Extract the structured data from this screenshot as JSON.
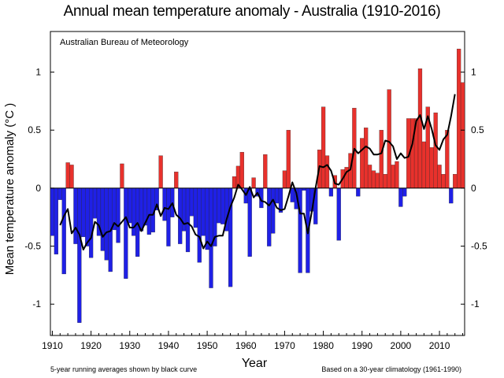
{
  "chart_data": {
    "type": "bar",
    "title": "Annual mean temperature anomaly - Australia (1910-2016)",
    "source_label": "Australian Bureau of Meteorology",
    "xlabel": "Year",
    "ylabel": "Mean temperature anomaly (°C )",
    "note_left": "5-year running averages shown by black curve",
    "note_right": "Based on a 30-year climatology (1961-1990)",
    "xlim": [
      1909.5,
      2016.5
    ],
    "ylim": [
      -1.27,
      1.35
    ],
    "x_ticks": [
      1910,
      1920,
      1930,
      1940,
      1950,
      1960,
      1970,
      1980,
      1990,
      2000,
      2010
    ],
    "y_ticks": [
      -1,
      -0.5,
      0,
      0.5,
      1
    ],
    "y_tick_labels": [
      "-1",
      "-0.5",
      "0",
      "0.5",
      "1"
    ],
    "grid": false,
    "colors": {
      "positive": "#e8312c",
      "negative": "#1f20e6",
      "curve": "#000000",
      "edge": "#222222"
    },
    "years": [
      1910,
      1911,
      1912,
      1913,
      1914,
      1915,
      1916,
      1917,
      1918,
      1919,
      1920,
      1921,
      1922,
      1923,
      1924,
      1925,
      1926,
      1927,
      1928,
      1929,
      1930,
      1931,
      1932,
      1933,
      1934,
      1935,
      1936,
      1937,
      1938,
      1939,
      1940,
      1941,
      1942,
      1943,
      1944,
      1945,
      1946,
      1947,
      1948,
      1949,
      1950,
      1951,
      1952,
      1953,
      1954,
      1955,
      1956,
      1957,
      1958,
      1959,
      1960,
      1961,
      1962,
      1963,
      1964,
      1965,
      1966,
      1967,
      1968,
      1969,
      1970,
      1971,
      1972,
      1973,
      1974,
      1975,
      1976,
      1977,
      1978,
      1979,
      1980,
      1981,
      1982,
      1983,
      1984,
      1985,
      1986,
      1987,
      1988,
      1989,
      1990,
      1991,
      1992,
      1993,
      1994,
      1995,
      1996,
      1997,
      1998,
      1999,
      2000,
      2001,
      2002,
      2003,
      2004,
      2005,
      2006,
      2007,
      2008,
      2009,
      2010,
      2011,
      2012,
      2013,
      2014,
      2015,
      2016
    ],
    "values": [
      -0.41,
      -0.57,
      -0.1,
      -0.74,
      0.22,
      0.2,
      -0.48,
      -1.16,
      -0.42,
      -0.5,
      -0.6,
      -0.26,
      -0.41,
      -0.54,
      -0.62,
      -0.72,
      -0.36,
      -0.47,
      0.21,
      -0.78,
      -0.3,
      -0.41,
      -0.59,
      -0.37,
      -0.32,
      -0.4,
      -0.38,
      -0.19,
      0.28,
      -0.28,
      -0.5,
      -0.25,
      0.14,
      -0.48,
      -0.37,
      -0.55,
      -0.24,
      -0.34,
      -0.64,
      -0.41,
      -0.53,
      -0.86,
      -0.5,
      -0.3,
      -0.31,
      -0.37,
      -0.85,
      0.1,
      0.19,
      0.31,
      -0.13,
      -0.59,
      0.09,
      -0.07,
      -0.17,
      0.29,
      -0.5,
      -0.39,
      -0.13,
      -0.21,
      0.15,
      0.5,
      -0.12,
      -0.18,
      -0.73,
      -0.02,
      -0.73,
      -0.2,
      -0.31,
      0.33,
      0.7,
      0.28,
      -0.07,
      0.11,
      -0.45,
      0.16,
      0.18,
      0.3,
      0.69,
      -0.07,
      0.43,
      0.52,
      0.2,
      0.15,
      0.13,
      0.5,
      0.12,
      0.85,
      0.2,
      0.23,
      -0.16,
      -0.07,
      0.6,
      0.6,
      0.6,
      1.03,
      0.4,
      0.7,
      0.35,
      0.65,
      0.2,
      0.12,
      0.5,
      -0.13,
      0.12,
      1.2,
      0.91
    ],
    "running_mean_5yr": {
      "x": [
        1912,
        1913,
        1914,
        1915,
        1916,
        1917,
        1918,
        1919,
        1920,
        1921,
        1922,
        1923,
        1924,
        1925,
        1926,
        1927,
        1928,
        1929,
        1930,
        1931,
        1932,
        1933,
        1934,
        1935,
        1936,
        1937,
        1938,
        1939,
        1940,
        1941,
        1942,
        1943,
        1944,
        1945,
        1946,
        1947,
        1948,
        1949,
        1950,
        1951,
        1952,
        1953,
        1954,
        1955,
        1956,
        1957,
        1958,
        1959,
        1960,
        1961,
        1962,
        1963,
        1964,
        1965,
        1966,
        1967,
        1968,
        1969,
        1970,
        1971,
        1972,
        1973,
        1974,
        1975,
        1976,
        1977,
        1978,
        1979,
        1980,
        1981,
        1982,
        1983,
        1984,
        1985,
        1986,
        1987,
        1988,
        1989,
        1990,
        1991,
        1992,
        1993,
        1994,
        1995,
        1996,
        1997,
        1998,
        1999,
        2000,
        2001,
        2002,
        2003,
        2004,
        2005,
        2006,
        2007,
        2008,
        2009,
        2010,
        2011,
        2012,
        2013,
        2014
      ],
      "y": [
        -0.32,
        -0.24,
        -0.18,
        -0.39,
        -0.34,
        -0.4,
        -0.53,
        -0.47,
        -0.43,
        -0.29,
        -0.32,
        -0.42,
        -0.38,
        -0.37,
        -0.3,
        -0.33,
        -0.29,
        -0.25,
        -0.34,
        -0.34,
        -0.3,
        -0.37,
        -0.3,
        -0.23,
        -0.23,
        -0.14,
        -0.24,
        -0.17,
        -0.18,
        -0.13,
        -0.23,
        -0.26,
        -0.31,
        -0.3,
        -0.33,
        -0.4,
        -0.42,
        -0.52,
        -0.46,
        -0.5,
        -0.42,
        -0.41,
        -0.41,
        -0.27,
        -0.16,
        -0.08,
        0.03,
        -0.01,
        -0.06,
        0.01,
        -0.08,
        -0.04,
        -0.11,
        -0.12,
        -0.15,
        -0.1,
        -0.17,
        -0.19,
        -0.18,
        -0.07,
        0.05,
        -0.04,
        -0.22,
        -0.22,
        -0.39,
        -0.21,
        0.0,
        0.19,
        0.18,
        0.2,
        0.15,
        0.04,
        0.03,
        0.08,
        0.14,
        0.16,
        0.34,
        0.3,
        0.33,
        0.36,
        0.34,
        0.29,
        0.29,
        0.3,
        0.41,
        0.4,
        0.36,
        0.25,
        0.3,
        0.26,
        0.27,
        0.38,
        0.58,
        0.63,
        0.51,
        0.62,
        0.51,
        0.37,
        0.33,
        0.42,
        0.46,
        0.62,
        0.81
      ]
    }
  }
}
